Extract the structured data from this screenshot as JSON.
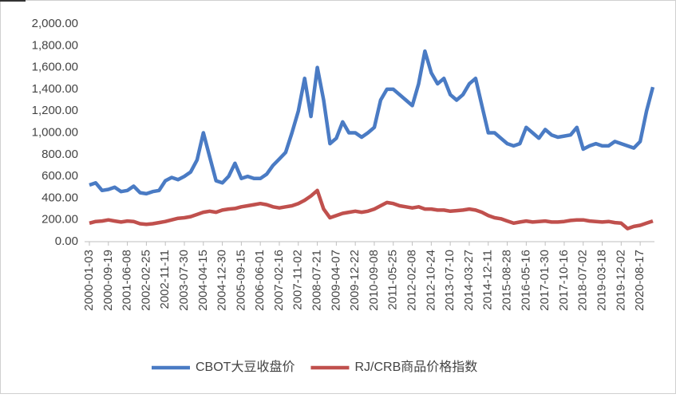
{
  "chart_data": {
    "type": "line",
    "categories": [
      "2000-01-03",
      null,
      null,
      "2000-09-19",
      null,
      null,
      "2001-06-08",
      null,
      null,
      "2002-02-25",
      null,
      null,
      "2002-11-11",
      null,
      null,
      "2003-07-30",
      null,
      null,
      "2004-04-15",
      null,
      null,
      "2004-12-30",
      null,
      null,
      "2005-09-15",
      null,
      null,
      "2006-06-01",
      null,
      null,
      "2007-02-16",
      null,
      null,
      "2007-11-02",
      null,
      null,
      "2008-07-21",
      null,
      null,
      "2009-04-07",
      null,
      null,
      "2009-12-22",
      null,
      null,
      "2010-09-08",
      null,
      null,
      "2011-05-25",
      null,
      null,
      "2012-02-08",
      null,
      null,
      "2012-10-24",
      null,
      null,
      "2013-07-10",
      null,
      null,
      "2014-03-27",
      null,
      null,
      "2014-12-11",
      null,
      null,
      "2015-08-28",
      null,
      null,
      "2016-05-16",
      null,
      null,
      "2017-01-30",
      null,
      null,
      "2017-10-16",
      null,
      null,
      "2018-07-02",
      null,
      null,
      "2019-03-18",
      null,
      null,
      "2019-12-02",
      null,
      null,
      "2020-08-17",
      null,
      null
    ],
    "series": [
      {
        "name": "CBOT大豆收盘价",
        "color": "#4a7bc4",
        "values": [
          520,
          540,
          470,
          480,
          500,
          460,
          470,
          510,
          450,
          440,
          460,
          470,
          560,
          590,
          570,
          600,
          640,
          750,
          1000,
          780,
          560,
          540,
          600,
          720,
          580,
          600,
          580,
          580,
          620,
          700,
          760,
          820,
          1000,
          1200,
          1500,
          1150,
          1600,
          1300,
          900,
          950,
          1100,
          1000,
          1000,
          960,
          1000,
          1050,
          1300,
          1400,
          1400,
          1350,
          1300,
          1250,
          1450,
          1750,
          1550,
          1450,
          1500,
          1350,
          1300,
          1350,
          1450,
          1500,
          1250,
          1000,
          1000,
          950,
          900,
          880,
          900,
          1050,
          1000,
          950,
          1030,
          980,
          960,
          970,
          980,
          1050,
          850,
          880,
          900,
          880,
          880,
          920,
          900,
          880,
          860,
          920,
          1200,
          1420
        ]
      },
      {
        "name": "RJ/CRB商品价格指数",
        "color": "#c0504d",
        "values": [
          170,
          185,
          190,
          200,
          190,
          180,
          190,
          185,
          165,
          160,
          165,
          175,
          185,
          200,
          215,
          220,
          230,
          250,
          270,
          280,
          270,
          290,
          300,
          305,
          320,
          330,
          340,
          350,
          340,
          320,
          310,
          320,
          330,
          350,
          380,
          420,
          470,
          300,
          220,
          240,
          260,
          270,
          280,
          270,
          280,
          300,
          330,
          360,
          350,
          330,
          320,
          310,
          320,
          300,
          300,
          290,
          290,
          280,
          285,
          290,
          300,
          290,
          270,
          240,
          220,
          210,
          190,
          170,
          180,
          190,
          180,
          185,
          190,
          180,
          180,
          185,
          195,
          200,
          200,
          190,
          185,
          180,
          185,
          175,
          170,
          120,
          140,
          150,
          170,
          190
        ]
      }
    ],
    "ylim": [
      0,
      2000
    ],
    "yticks": [
      {
        "value": 0,
        "label": "0.00"
      },
      {
        "value": 200,
        "label": "200.00"
      },
      {
        "value": 400,
        "label": "400.00"
      },
      {
        "value": 600,
        "label": "600.00"
      },
      {
        "value": 800,
        "label": "800.00"
      },
      {
        "value": 1000,
        "label": "1,000.00"
      },
      {
        "value": 1200,
        "label": "1,200.00"
      },
      {
        "value": 1400,
        "label": "1,400.00"
      },
      {
        "value": 1600,
        "label": "1,600.00"
      },
      {
        "value": 1800,
        "label": "1,800.00"
      },
      {
        "value": 2000,
        "label": "2,000.00"
      }
    ],
    "legend": "bottom"
  }
}
